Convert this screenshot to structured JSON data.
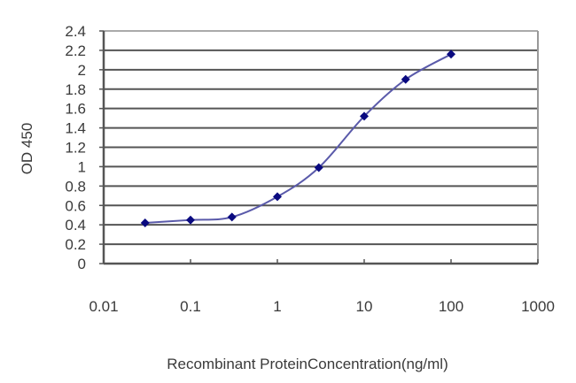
{
  "chart_data": {
    "type": "line",
    "title": "",
    "xlabel": "Recombinant ProteinConcentration(ng/ml)",
    "ylabel": "OD 450",
    "xscale": "log",
    "xlim": [
      0.01,
      1000
    ],
    "ylim": [
      0,
      2.4
    ],
    "x_ticks": [
      "0.01",
      "0.1",
      "1",
      "10",
      "100",
      "1000"
    ],
    "y_ticks": [
      "0",
      "0.2",
      "0.4",
      "0.6",
      "0.8",
      "1",
      "1.2",
      "1.4",
      "1.6",
      "1.8",
      "2",
      "2.2",
      "2.4"
    ],
    "grid": {
      "horizontal": true,
      "vertical": false
    },
    "legend": null,
    "series": [
      {
        "name": "OD 450",
        "x": [
          0.03,
          0.1,
          0.3,
          1,
          3,
          10,
          30,
          100
        ],
        "values": [
          0.42,
          0.45,
          0.48,
          0.69,
          0.99,
          1.52,
          1.9,
          2.16
        ],
        "line_color": "#5a5aaa",
        "marker_color": "#0a0a80",
        "marker": "diamond"
      }
    ]
  },
  "colors": {
    "grid": "#555555",
    "axis": "#555555",
    "text": "#3a3a3a",
    "background": "#ffffff"
  }
}
